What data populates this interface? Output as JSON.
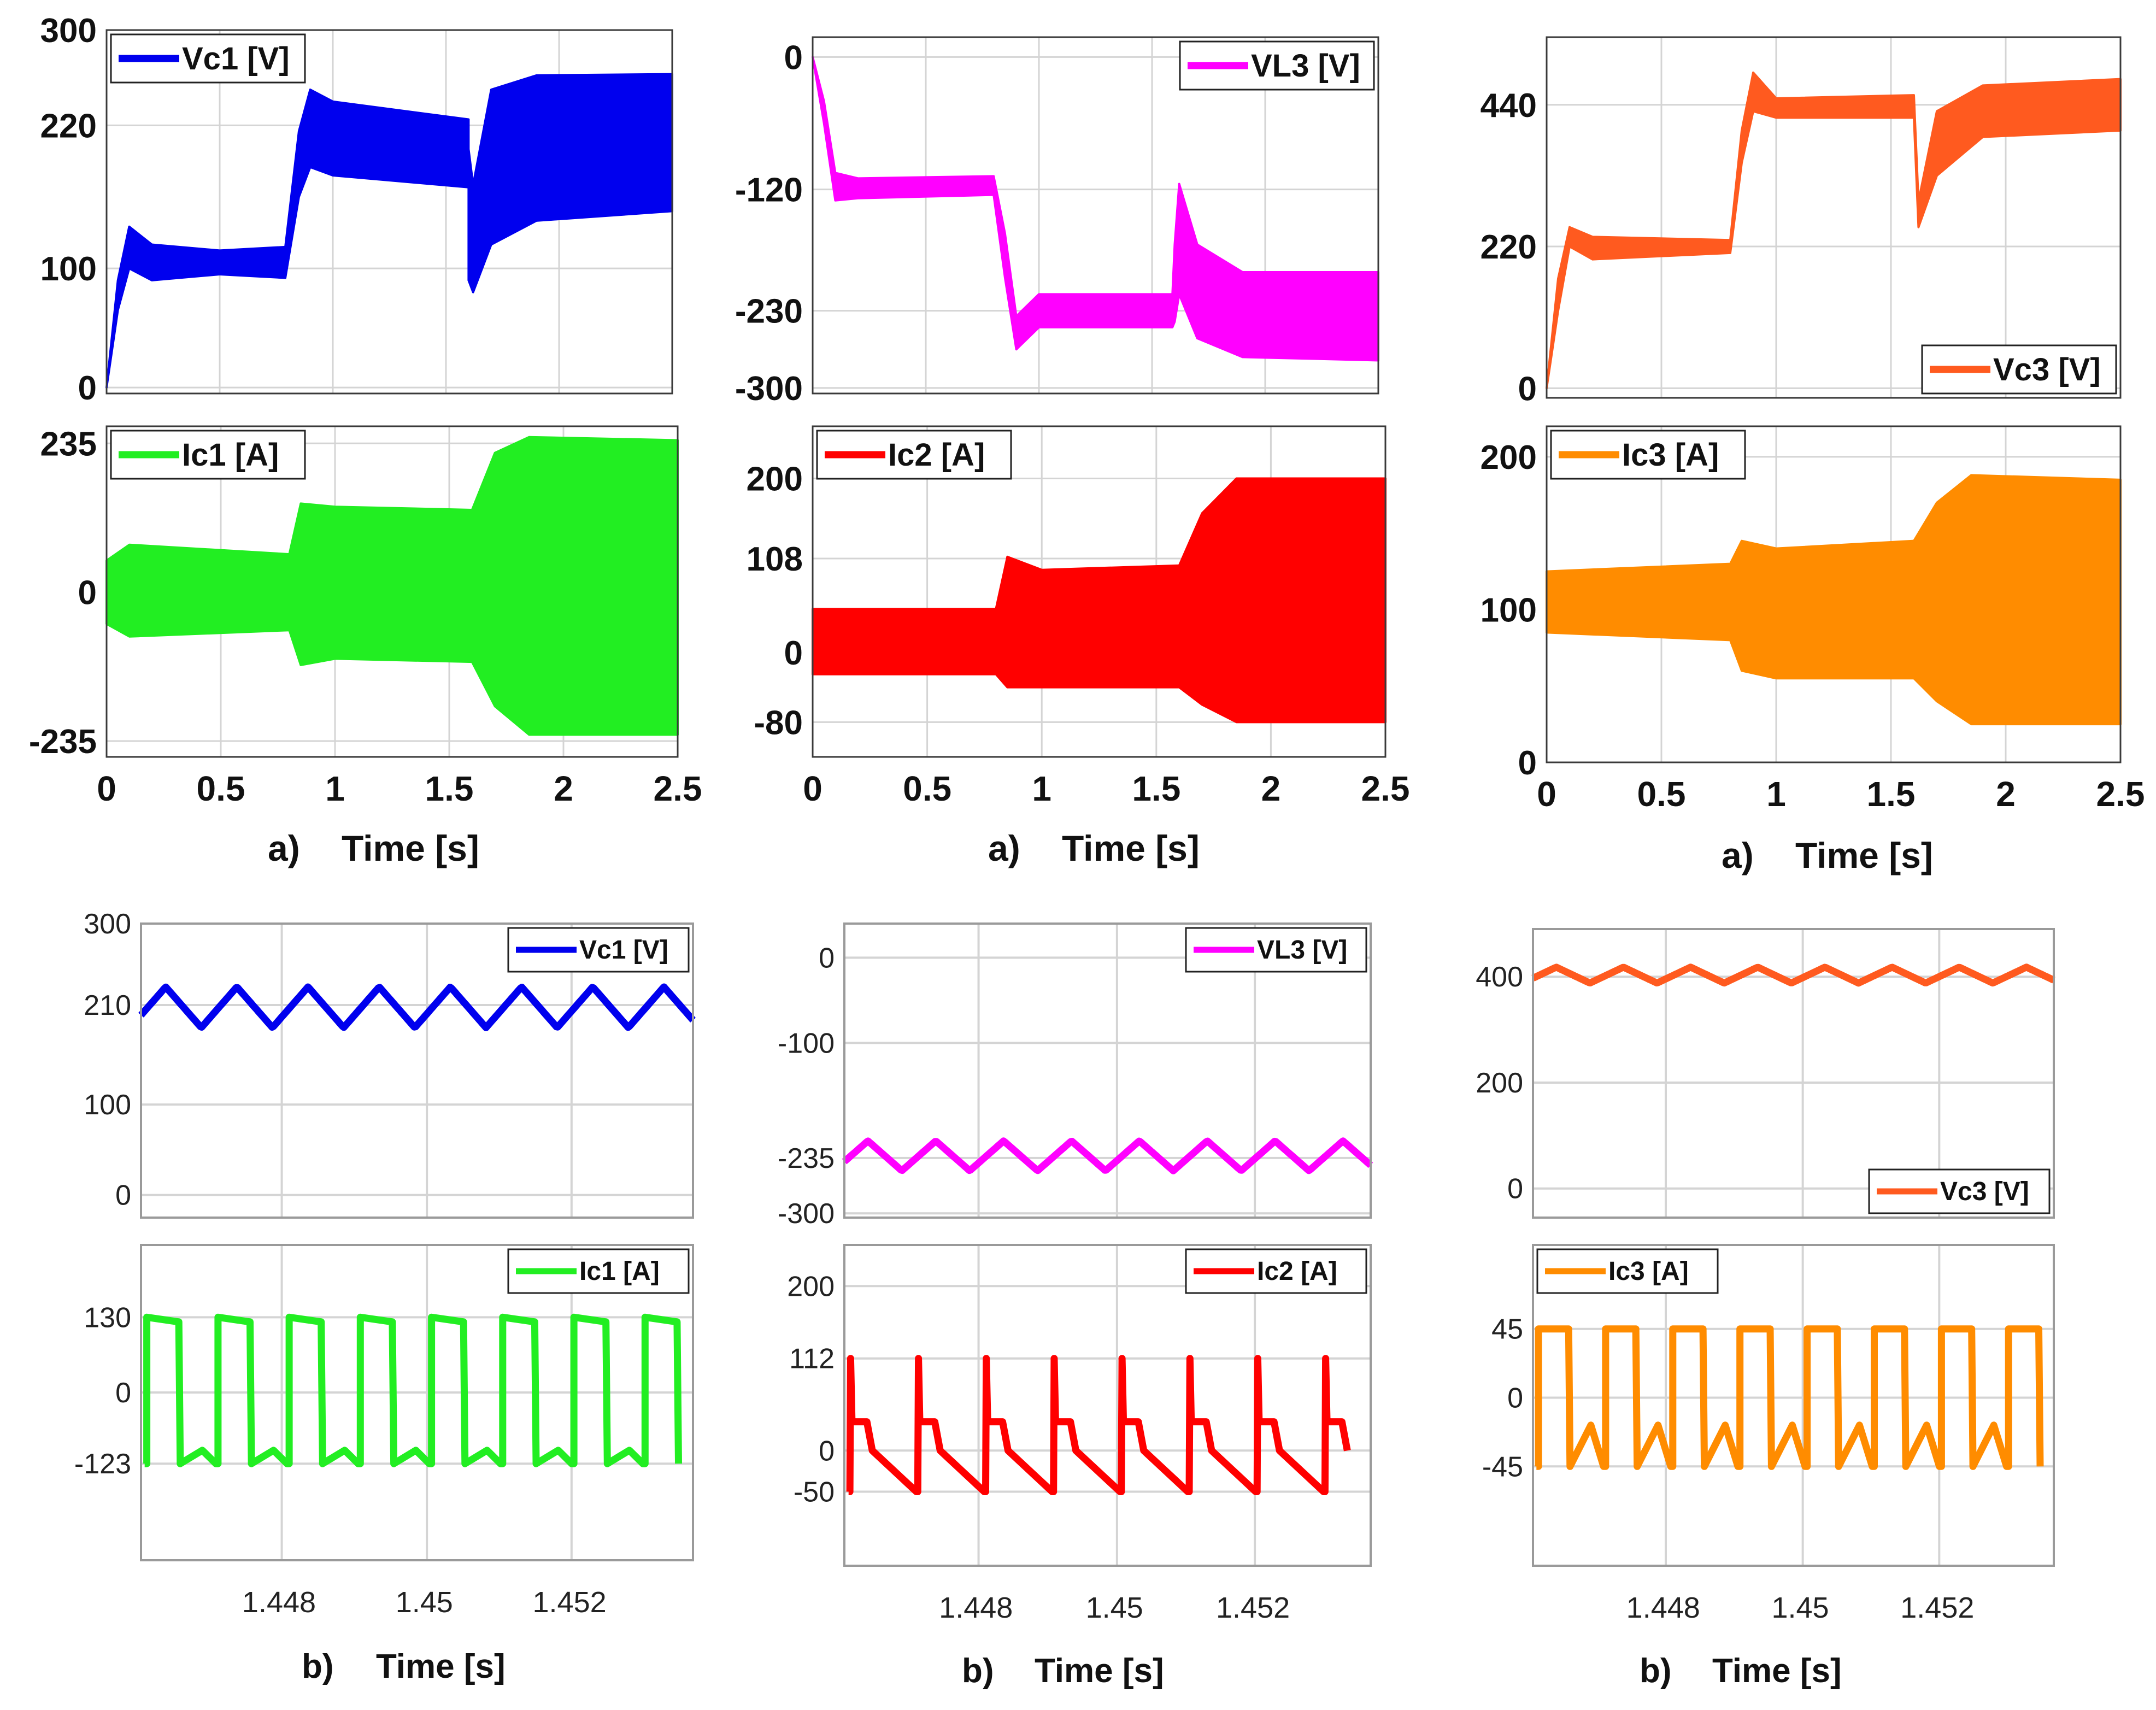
{
  "figure": {
    "captions": {
      "top": {
        "label": "a)",
        "axis": "Time [s]"
      },
      "bottom": {
        "label": "b)",
        "axis": "Time [s]"
      }
    }
  },
  "chart_data": [
    {
      "id": "a-vc1",
      "type": "line",
      "style": "band",
      "color": "#0000ee",
      "title": "",
      "xlabel": "",
      "ylabel": "",
      "legend": "Vc1 [V]",
      "legend_pos": "top-left",
      "xlim": [
        0,
        2.5
      ],
      "ylim": [
        -5,
        300
      ],
      "yticks": [
        0,
        100,
        220,
        300
      ],
      "xticks": [],
      "band": [
        [
          0,
          0,
          0
        ],
        [
          0.05,
          65,
          90
        ],
        [
          0.1,
          100,
          135
        ],
        [
          0.2,
          90,
          120
        ],
        [
          0.5,
          95,
          115
        ],
        [
          0.79,
          92,
          118
        ],
        [
          0.85,
          160,
          215
        ],
        [
          0.9,
          185,
          250
        ],
        [
          1.0,
          178,
          240
        ],
        [
          1.6,
          168,
          225
        ],
        [
          1.6,
          90,
          200
        ],
        [
          1.62,
          80,
          170
        ],
        [
          1.7,
          120,
          250
        ],
        [
          1.9,
          140,
          262
        ],
        [
          2.5,
          148,
          263
        ]
      ]
    },
    {
      "id": "a-vl3",
      "type": "line",
      "style": "band",
      "color": "#ff00ff",
      "title": "",
      "xlabel": "",
      "ylabel": "",
      "legend": "VL3 [V]",
      "legend_pos": "top-right",
      "xlim": [
        0,
        2.5
      ],
      "ylim": [
        -305,
        18
      ],
      "yticks": [
        0,
        -120,
        -230,
        -300
      ],
      "xticks": [],
      "band": [
        [
          0,
          0,
          0
        ],
        [
          0.05,
          -60,
          -40
        ],
        [
          0.1,
          -130,
          -105
        ],
        [
          0.2,
          -128,
          -110
        ],
        [
          0.8,
          -125,
          -108
        ],
        [
          0.85,
          -200,
          -160
        ],
        [
          0.9,
          -265,
          -235
        ],
        [
          1.0,
          -245,
          -215
        ],
        [
          1.59,
          -245,
          -215
        ],
        [
          1.6,
          -240,
          -170
        ],
        [
          1.62,
          -215,
          -115
        ],
        [
          1.7,
          -255,
          -170
        ],
        [
          1.9,
          -272,
          -195
        ],
        [
          2.5,
          -275,
          -195
        ]
      ]
    },
    {
      "id": "a-vc3",
      "type": "line",
      "style": "band",
      "color": "#ff5a1f",
      "title": "",
      "xlabel": "",
      "ylabel": "",
      "legend": "Vc3 [V]",
      "legend_pos": "bottom-right",
      "xlim": [
        0,
        2.5
      ],
      "ylim": [
        -15,
        545
      ],
      "yticks": [
        0,
        220,
        440
      ],
      "xticks": [],
      "band": [
        [
          0,
          0,
          0
        ],
        [
          0.05,
          120,
          170
        ],
        [
          0.1,
          220,
          250
        ],
        [
          0.2,
          200,
          235
        ],
        [
          0.8,
          210,
          230
        ],
        [
          0.85,
          350,
          400
        ],
        [
          0.9,
          430,
          490
        ],
        [
          1.0,
          420,
          450
        ],
        [
          1.6,
          420,
          455
        ],
        [
          1.62,
          250,
          290
        ],
        [
          1.7,
          330,
          430
        ],
        [
          1.9,
          390,
          470
        ],
        [
          2.5,
          400,
          480
        ]
      ]
    },
    {
      "id": "a-ic1",
      "type": "line",
      "style": "band",
      "color": "#22ee22",
      "title": "",
      "xlabel": "",
      "ylabel": "",
      "legend": "Ic1 [A]",
      "legend_pos": "top-left",
      "xlim": [
        0,
        2.5
      ],
      "ylim": [
        -260,
        262
      ],
      "yticks": [
        -235,
        0,
        235
      ],
      "xticks": [
        0,
        0.5,
        1,
        1.5,
        2,
        2.5
      ],
      "band": [
        [
          0,
          -50,
          50
        ],
        [
          0.1,
          -70,
          75
        ],
        [
          0.8,
          -60,
          60
        ],
        [
          0.85,
          -115,
          140
        ],
        [
          1.0,
          -105,
          135
        ],
        [
          1.6,
          -110,
          130
        ],
        [
          1.7,
          -180,
          220
        ],
        [
          1.85,
          -225,
          245
        ],
        [
          2.5,
          -225,
          240
        ]
      ]
    },
    {
      "id": "a-ic2",
      "type": "line",
      "style": "band",
      "color": "#ff0000",
      "title": "",
      "xlabel": "",
      "ylabel": "",
      "legend": "Ic2 [A]",
      "legend_pos": "top-left",
      "xlim": [
        0,
        2.5
      ],
      "ylim": [
        -120,
        260
      ],
      "yticks": [
        -80,
        0,
        108,
        200
      ],
      "xticks": [
        0,
        0.5,
        1,
        1.5,
        2,
        2.5
      ],
      "band": [
        [
          0,
          -25,
          50
        ],
        [
          0.8,
          -25,
          50
        ],
        [
          0.85,
          -40,
          110
        ],
        [
          1.0,
          -40,
          95
        ],
        [
          1.6,
          -40,
          100
        ],
        [
          1.7,
          -60,
          160
        ],
        [
          1.85,
          -80,
          200
        ],
        [
          2.5,
          -80,
          200
        ]
      ]
    },
    {
      "id": "a-ic3",
      "type": "line",
      "style": "band",
      "color": "#ff8c00",
      "title": "",
      "xlabel": "",
      "ylabel": "",
      "legend": "Ic3 [A]",
      "legend_pos": "top-left",
      "xlim": [
        0,
        2.5
      ],
      "ylim": [
        0,
        220
      ],
      "yticks": [
        0,
        100,
        200
      ],
      "xticks": [
        0,
        0.5,
        1,
        1.5,
        2,
        2.5
      ],
      "band": [
        [
          0,
          85,
          125
        ],
        [
          0.8,
          80,
          130
        ],
        [
          0.85,
          60,
          145
        ],
        [
          1.0,
          55,
          140
        ],
        [
          1.6,
          55,
          145
        ],
        [
          1.7,
          40,
          170
        ],
        [
          1.85,
          25,
          188
        ],
        [
          2.5,
          25,
          185
        ]
      ]
    },
    {
      "id": "b-vc1",
      "type": "line",
      "style": "wave",
      "wave": "triangle",
      "color": "#0000ee",
      "title": "",
      "xlabel": "",
      "ylabel": "",
      "legend": "Vc1 [V]",
      "legend_pos": "top-right",
      "xlim": [
        1.4461,
        1.4537
      ],
      "ylim": [
        -25,
        300
      ],
      "yticks": [
        0,
        100,
        210,
        300
      ],
      "xticks": [],
      "period": 0.00098,
      "phase": 0.00045,
      "lo": 185,
      "hi": 230
    },
    {
      "id": "b-vl3",
      "type": "line",
      "style": "wave",
      "wave": "triangle",
      "color": "#ff00ff",
      "title": "",
      "xlabel": "",
      "ylabel": "",
      "legend": "VL3 [V]",
      "legend_pos": "top-right",
      "xlim": [
        1.4461,
        1.4537
      ],
      "ylim": [
        -305,
        40
      ],
      "yticks": [
        0,
        -100,
        -235,
        -300
      ],
      "xticks": [],
      "period": 0.00098,
      "phase": 0.00045,
      "lo": -250,
      "hi": -215
    },
    {
      "id": "b-vc3",
      "type": "line",
      "style": "wave",
      "wave": "triangle",
      "color": "#ff5a1f",
      "title": "",
      "xlabel": "",
      "ylabel": "",
      "legend": "Vc3 [V]",
      "legend_pos": "bottom-right",
      "xlim": [
        1.4461,
        1.4537
      ],
      "ylim": [
        -55,
        490
      ],
      "yticks": [
        0,
        200,
        400
      ],
      "xticks": [],
      "period": 0.00098,
      "phase": 0.00045,
      "lo": 388,
      "hi": 418
    },
    {
      "id": "b-ic1",
      "type": "line",
      "style": "wave",
      "wave": "square",
      "color": "#22ee22",
      "title": "",
      "xlabel": "",
      "ylabel": "",
      "legend": "Ic1 [A]",
      "legend_pos": "top-right",
      "xlim": [
        1.4461,
        1.4537
      ],
      "ylim": [
        -290,
        255
      ],
      "yticks": [
        -123,
        0,
        130
      ],
      "xticks": [
        1.448,
        1.45,
        1.452
      ],
      "period": 0.00098,
      "phase": 8e-05,
      "lo": -123,
      "hi": 130,
      "duty": 0.45,
      "hiEnd": 122,
      "loEnd": -100
    },
    {
      "id": "b-ic2",
      "type": "line",
      "style": "wave",
      "wave": "spike",
      "color": "#ff0000",
      "title": "",
      "xlabel": "",
      "ylabel": "",
      "legend": "Ic2 [A]",
      "legend_pos": "top-right",
      "xlim": [
        1.4461,
        1.4537
      ],
      "ylim": [
        -140,
        250
      ],
      "yticks": [
        -50,
        0,
        112,
        200
      ],
      "xticks": [
        1.448,
        1.45,
        1.452
      ],
      "period": 0.00098,
      "phase": 8e-05,
      "peak": 112,
      "mid": 35,
      "lo": -50
    },
    {
      "id": "b-ic3",
      "type": "line",
      "style": "wave",
      "wave": "square",
      "color": "#ff8c00",
      "title": "",
      "xlabel": "",
      "ylabel": "",
      "legend": "Ic3 [A]",
      "legend_pos": "top-left",
      "xlim": [
        1.4461,
        1.4537
      ],
      "ylim": [
        -110,
        100
      ],
      "yticks": [
        -45,
        0,
        45
      ],
      "xticks": [
        1.448,
        1.45,
        1.452
      ],
      "period": 0.00098,
      "phase": 8e-05,
      "lo": -45,
      "hi": 45,
      "duty": 0.45,
      "hiEnd": 45,
      "loEnd": -18
    }
  ]
}
